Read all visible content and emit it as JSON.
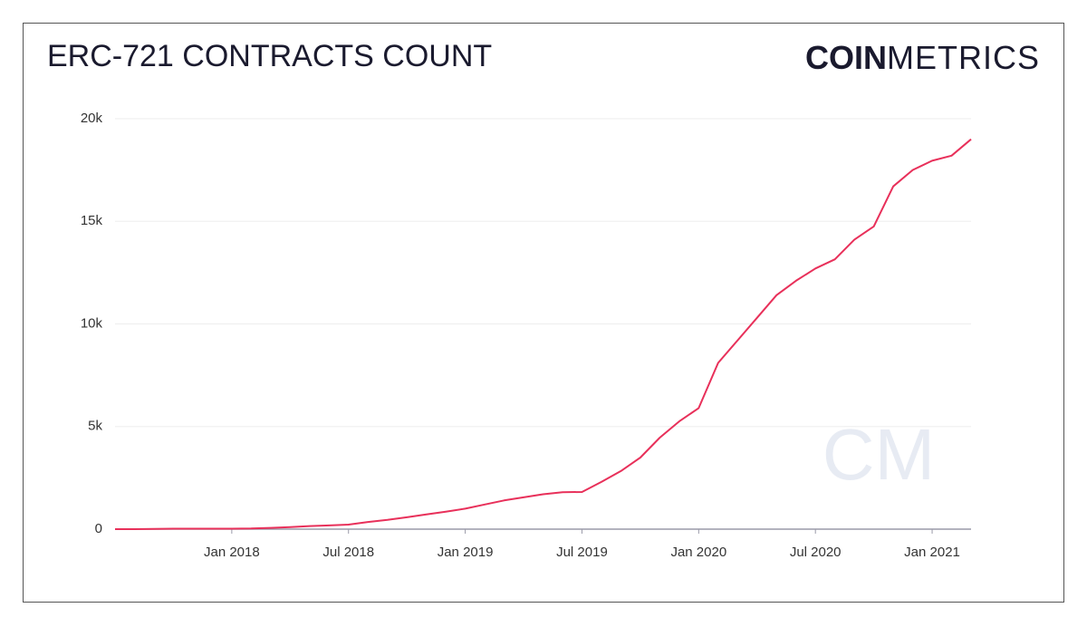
{
  "chart_data": {
    "type": "line",
    "title": "ERC-721 CONTRACTS COUNT",
    "logo": {
      "bold": "COIN",
      "light": "METRICS"
    },
    "watermark": "CM",
    "x": [
      "2017-07",
      "2017-08",
      "2017-09",
      "2017-10",
      "2017-11",
      "2017-12",
      "2018-01",
      "2018-02",
      "2018-03",
      "2018-04",
      "2018-05",
      "2018-06",
      "2018-07",
      "2018-08",
      "2018-09",
      "2018-10",
      "2018-11",
      "2018-12",
      "2019-01",
      "2019-02",
      "2019-03",
      "2019-04",
      "2019-05",
      "2019-06",
      "2019-07",
      "2019-08",
      "2019-09",
      "2019-10",
      "2019-11",
      "2019-12",
      "2020-01",
      "2020-02",
      "2020-03",
      "2020-04",
      "2020-05",
      "2020-06",
      "2020-07",
      "2020-08",
      "2020-09",
      "2020-10",
      "2020-11",
      "2020-12",
      "2021-01",
      "2021-02",
      "2021-03"
    ],
    "series": [
      {
        "name": "ERC-721 contracts",
        "color": "#e8305a",
        "values": [
          0,
          0,
          10,
          20,
          20,
          20,
          20,
          30,
          60,
          100,
          150,
          180,
          220,
          350,
          450,
          580,
          720,
          850,
          1000,
          1200,
          1400,
          1550,
          1700,
          1800,
          1810,
          2300,
          2830,
          3490,
          4460,
          5250,
          5900,
          8100,
          9200,
          10300,
          11400,
          12100,
          12700,
          13150,
          14100,
          14750,
          16700,
          17500,
          17950,
          18200,
          19000
        ]
      }
    ],
    "xlim": [
      "2017-07",
      "2021-03"
    ],
    "xticks": [
      {
        "value": "2018-01",
        "label": "Jan 2018"
      },
      {
        "value": "2018-07",
        "label": "Jul 2018"
      },
      {
        "value": "2019-01",
        "label": "Jan 2019"
      },
      {
        "value": "2019-07",
        "label": "Jul 2019"
      },
      {
        "value": "2020-01",
        "label": "Jan 2020"
      },
      {
        "value": "2020-07",
        "label": "Jul 2020"
      },
      {
        "value": "2021-01",
        "label": "Jan 2021"
      }
    ],
    "ylim": [
      0,
      20000
    ],
    "yticks": [
      0,
      {
        "value": 5000,
        "label": "5k"
      },
      {
        "value": 10000,
        "label": "10k"
      },
      {
        "value": 15000,
        "label": "15k"
      },
      {
        "value": 20000,
        "label": "20k"
      }
    ],
    "grid": true
  }
}
